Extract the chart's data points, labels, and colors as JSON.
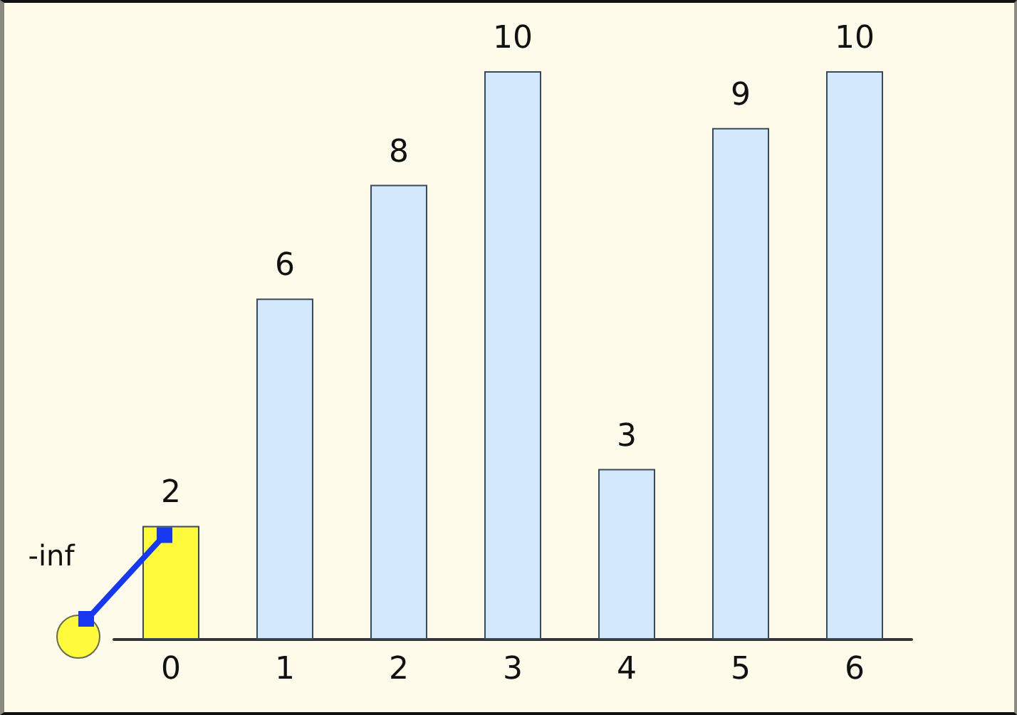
{
  "chart_data": {
    "type": "bar",
    "categories": [
      "0",
      "1",
      "2",
      "3",
      "4",
      "5",
      "6"
    ],
    "values": [
      2,
      6,
      8,
      10,
      3,
      9,
      10
    ],
    "colors": [
      "#fffb3c",
      "#d4e8fc",
      "#d4e8fc",
      "#d4e8fc",
      "#d4e8fc",
      "#d4e8fc",
      "#d4e8fc"
    ],
    "data_labels": true,
    "tick_labels": "x",
    "annotations": [
      "-inf"
    ]
  }
}
